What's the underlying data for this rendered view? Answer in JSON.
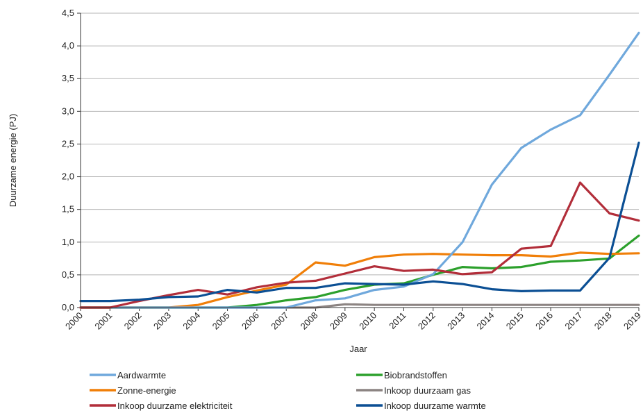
{
  "chart_data": {
    "type": "line",
    "xlabel": "Jaar",
    "ylabel": "Duurzame energie (PJ)",
    "ylim": [
      0,
      4.5
    ],
    "yticks": [
      "0,0",
      "0,5",
      "1,0",
      "1,5",
      "2,0",
      "2,5",
      "3,0",
      "3,5",
      "4,0",
      "4,5"
    ],
    "grid": "horizontal",
    "legend_position": "bottom",
    "x": [
      "2000",
      "2001",
      "2002",
      "2003",
      "2004",
      "2005",
      "2006",
      "2007",
      "2008",
      "2009",
      "2010",
      "2011",
      "2012",
      "2013",
      "2014",
      "2015",
      "2016",
      "2017",
      "2018",
      "2019"
    ],
    "series": [
      {
        "name": "Aardwarmte",
        "color": "#6FA8DC",
        "values": [
          0,
          0,
          0,
          0,
          0,
          0,
          0,
          0,
          0.11,
          0.14,
          0.27,
          0.32,
          0.51,
          1.0,
          1.88,
          2.44,
          2.72,
          2.94,
          3.56,
          4.2
        ]
      },
      {
        "name": "Biobrandstoffen",
        "color": "#2CA02C",
        "values": [
          0,
          0,
          0,
          0,
          0,
          0,
          0.04,
          0.11,
          0.16,
          0.27,
          0.35,
          0.37,
          0.5,
          0.62,
          0.6,
          0.62,
          0.7,
          0.72,
          0.75,
          1.1
        ]
      },
      {
        "name": "Zonne-energie",
        "color": "#F07F09",
        "values": [
          0,
          0,
          0,
          0,
          0.04,
          0.16,
          0.26,
          0.35,
          0.69,
          0.64,
          0.77,
          0.81,
          0.82,
          0.81,
          0.8,
          0.8,
          0.78,
          0.84,
          0.82,
          0.83
        ]
      },
      {
        "name": "Inkoop duurzaam gas",
        "color": "#8C8482",
        "values": [
          0,
          0,
          0,
          0,
          0,
          0,
          0,
          0,
          0,
          0.05,
          0.04,
          0.04,
          0.04,
          0.04,
          0.04,
          0.04,
          0.04,
          0.04,
          0.04,
          0.04
        ]
      },
      {
        "name": "Inkoop duurzame elektriciteit",
        "color": "#B22E3A",
        "values": [
          0,
          0,
          0.1,
          0.19,
          0.27,
          0.2,
          0.31,
          0.38,
          0.41,
          0.52,
          0.63,
          0.56,
          0.58,
          0.51,
          0.54,
          0.9,
          0.94,
          1.91,
          1.44,
          1.33
        ]
      },
      {
        "name": "Inkoop duurzame warmte",
        "color": "#0B4F94",
        "values": [
          0.1,
          0.1,
          0.12,
          0.16,
          0.17,
          0.27,
          0.23,
          0.3,
          0.3,
          0.37,
          0.36,
          0.35,
          0.4,
          0.36,
          0.28,
          0.25,
          0.26,
          0.26,
          0.76,
          2.52
        ]
      }
    ],
    "legend_order": [
      "Aardwarmte",
      "Biobrandstoffen",
      "Zonne-energie",
      "Inkoop duurzaam gas",
      "Inkoop duurzame elektriciteit",
      "Inkoop duurzame warmte"
    ]
  }
}
